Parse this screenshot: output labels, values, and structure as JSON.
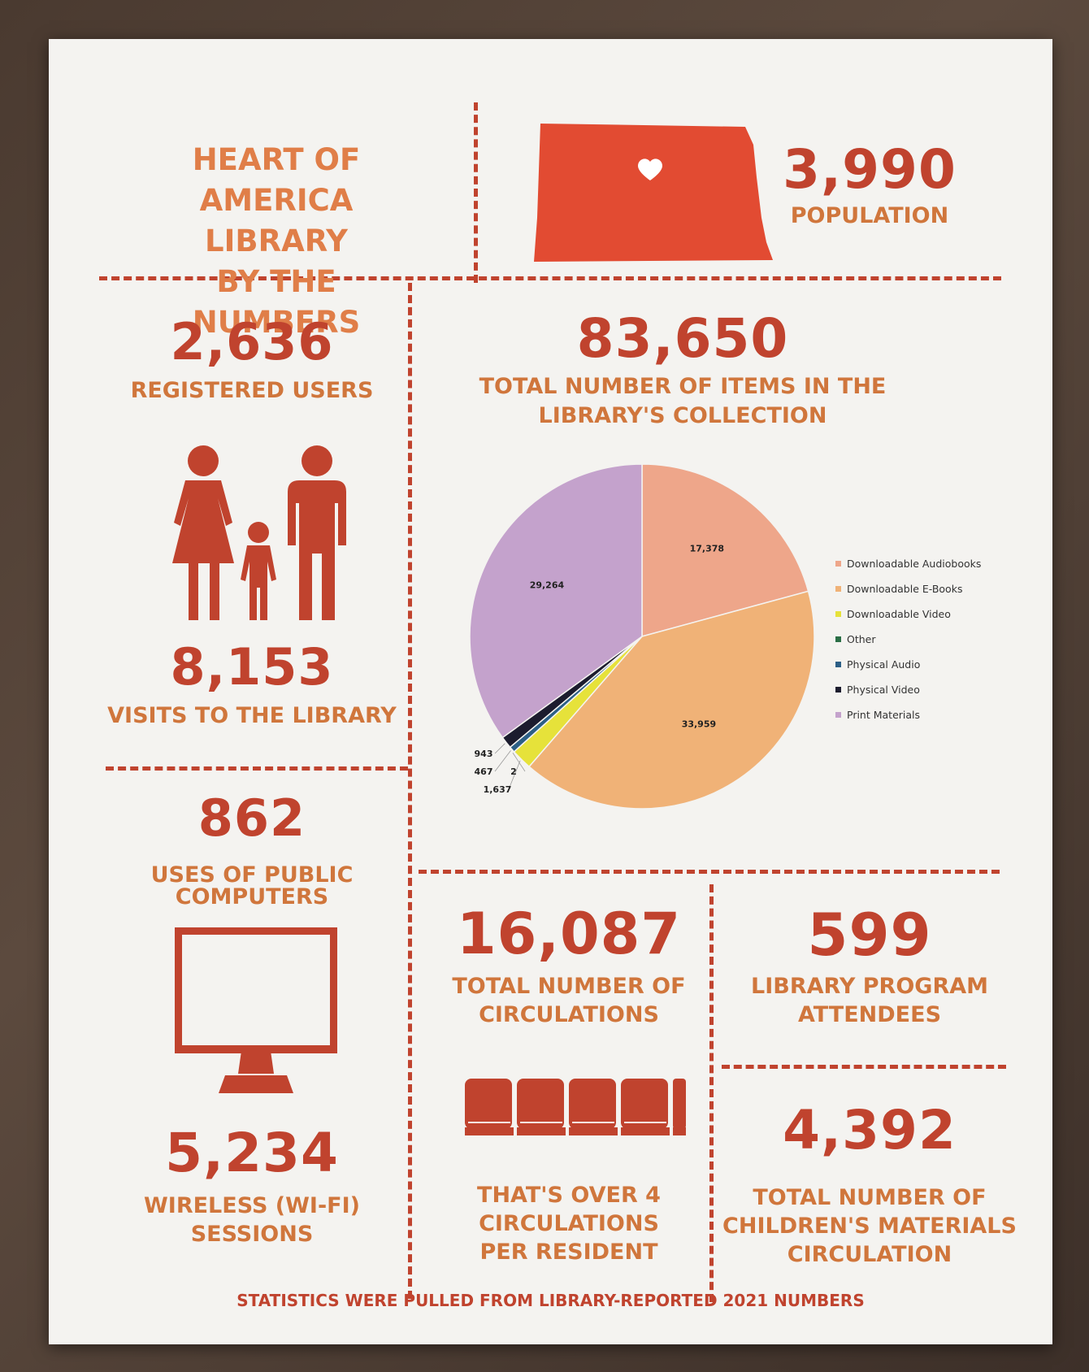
{
  "header": {
    "title_lines": [
      "HEART OF",
      "AMERICA LIBRARY",
      "BY THE NUMBERS"
    ]
  },
  "population": {
    "value": "3,990",
    "label": "POPULATION"
  },
  "users": {
    "value": "2,636",
    "label": "REGISTERED USERS"
  },
  "visits": {
    "value": "8,153",
    "label": "VISITS TO THE LIBRARY"
  },
  "computers": {
    "value": "862",
    "label_lines": [
      "USES OF PUBLIC",
      "COMPUTERS"
    ]
  },
  "wifi": {
    "value": "5,234",
    "label_lines": [
      "WIRELESS (WI-FI)",
      "SESSIONS"
    ]
  },
  "collection": {
    "value": "83,650",
    "label_lines": [
      "TOTAL NUMBER OF ITEMS IN THE",
      "LIBRARY'S COLLECTION"
    ]
  },
  "circulations": {
    "value": "16,087",
    "label_lines": [
      "TOTAL NUMBER OF",
      "CIRCULATIONS"
    ]
  },
  "per_resident": {
    "label_lines": [
      "THAT'S OVER 4",
      "CIRCULATIONS",
      "PER RESIDENT"
    ]
  },
  "programs": {
    "value": "599",
    "label_lines": [
      "LIBRARY PROGRAM",
      "ATTENDEES"
    ]
  },
  "children": {
    "value": "4,392",
    "label_lines": [
      "TOTAL NUMBER OF",
      "CHILDREN'S MATERIALS",
      "CIRCULATION"
    ]
  },
  "footer": {
    "text": "STATISTICS WERE PULLED FROM LIBRARY-REPORTED 2021 NUMBERS"
  },
  "icons": [
    "heart-icon",
    "state-map-icon",
    "family-icon",
    "computer-monitor-icon",
    "books-icon"
  ],
  "colors": {
    "accent": "#c0432e",
    "label": "#d0763c",
    "map": "#e24b32"
  },
  "chart_data": {
    "type": "pie",
    "categories": [
      "Downloadable Audiobooks",
      "Downloadable E-Books",
      "Downloadable Video",
      "Other",
      "Physical Audio",
      "Physical Video",
      "Print Materials"
    ],
    "values": [
      17378,
      33959,
      1637,
      2,
      467,
      943,
      29264
    ],
    "data_labels": [
      "17,378",
      "33,959",
      "1,637",
      "2",
      "467",
      "943",
      "29,264"
    ],
    "colors": [
      "#eea68a",
      "#f0b277",
      "#e6e23a",
      "#2a6e45",
      "#2c5f86",
      "#1c1c2e",
      "#c4a2cc"
    ],
    "legend_position": "right"
  }
}
